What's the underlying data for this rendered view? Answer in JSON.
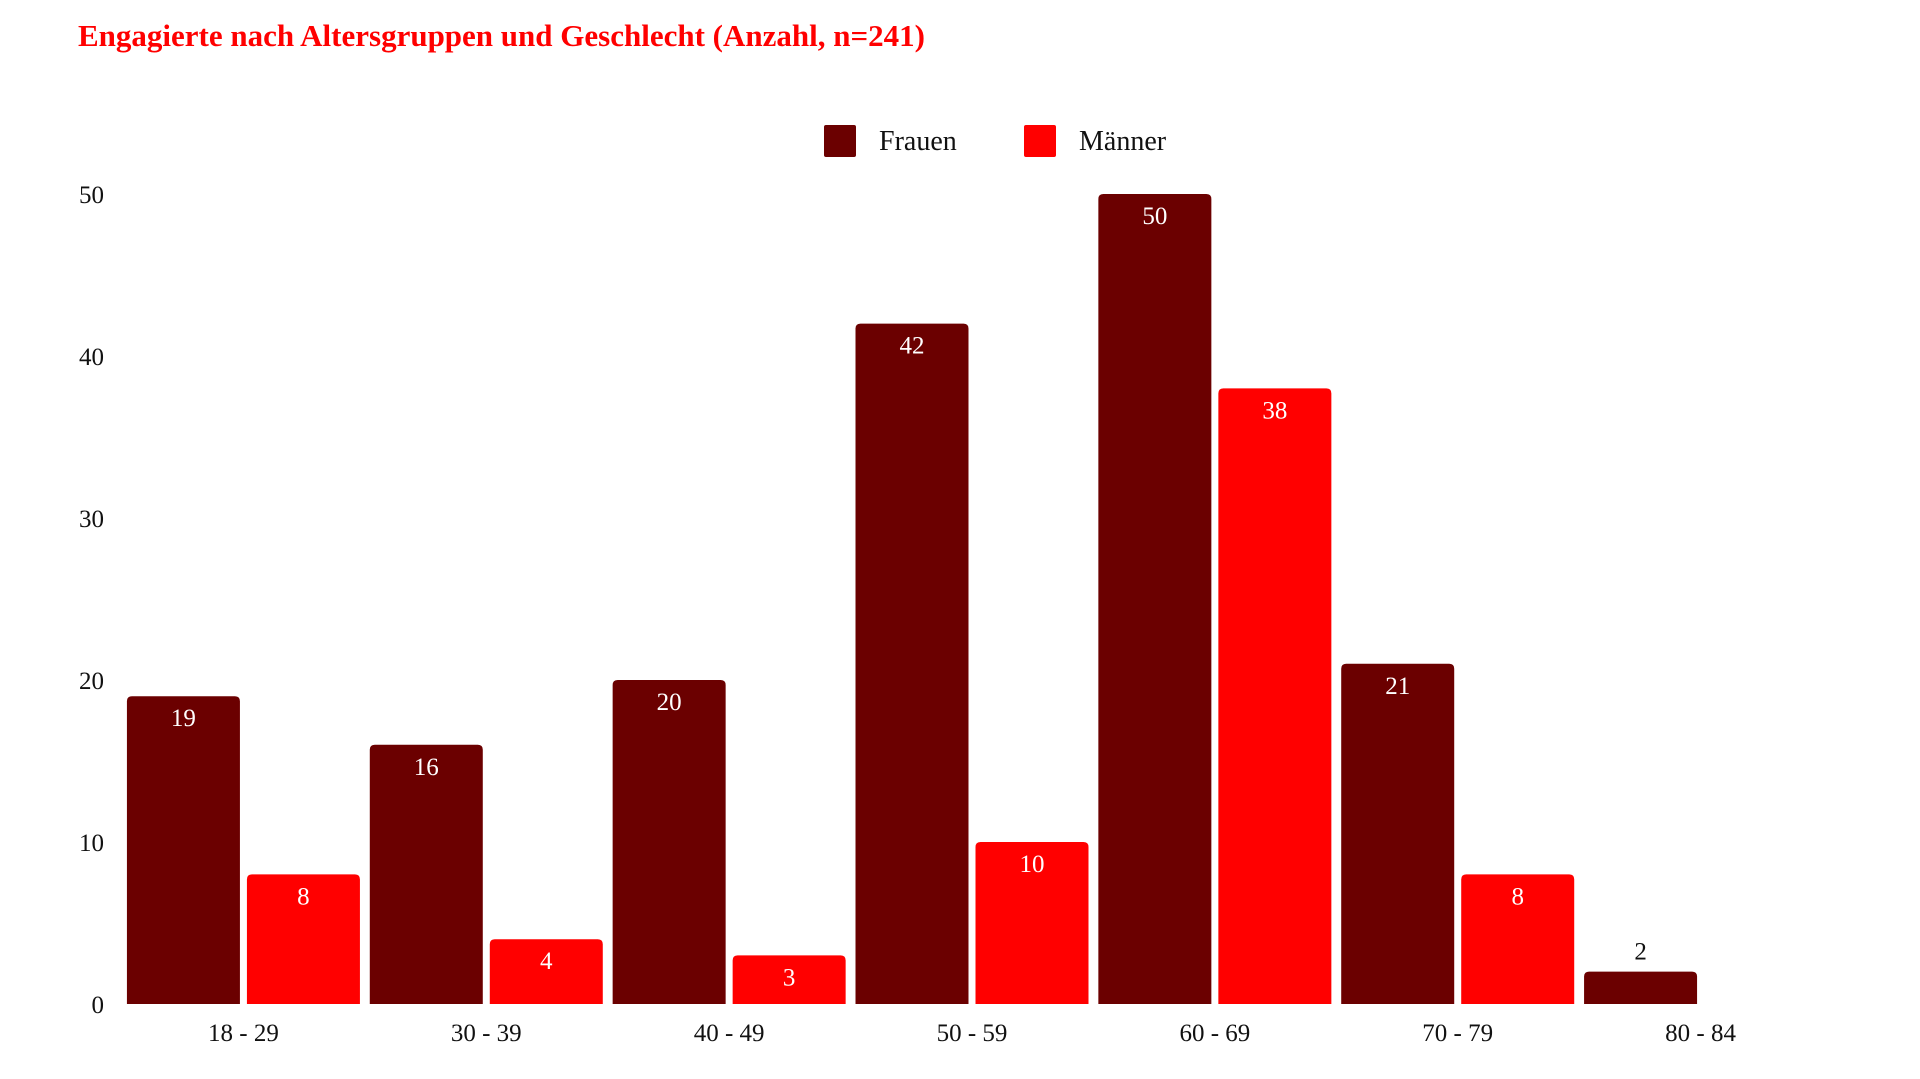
{
  "chart_data": {
    "type": "bar",
    "title": "Engagierte nach Altersgruppen und Geschlecht (Anzahl, n=241)",
    "xlabel": "",
    "ylabel": "",
    "categories": [
      "18 - 29",
      "30 - 39",
      "40 - 49",
      "50 - 59",
      "60 - 69",
      "70 - 79",
      "80 - 84"
    ],
    "series": [
      {
        "name": "Frauen",
        "color": "#6b0000",
        "values": [
          19,
          16,
          20,
          42,
          50,
          21,
          2
        ]
      },
      {
        "name": "Männer",
        "color": "#ff0000",
        "values": [
          8,
          4,
          3,
          10,
          38,
          8,
          null
        ]
      }
    ],
    "ylim": [
      0,
      50
    ],
    "yticks": [
      0,
      10,
      20,
      30,
      40,
      50
    ],
    "grid": false,
    "legend": "top-center",
    "title_color": "#ff0000"
  }
}
